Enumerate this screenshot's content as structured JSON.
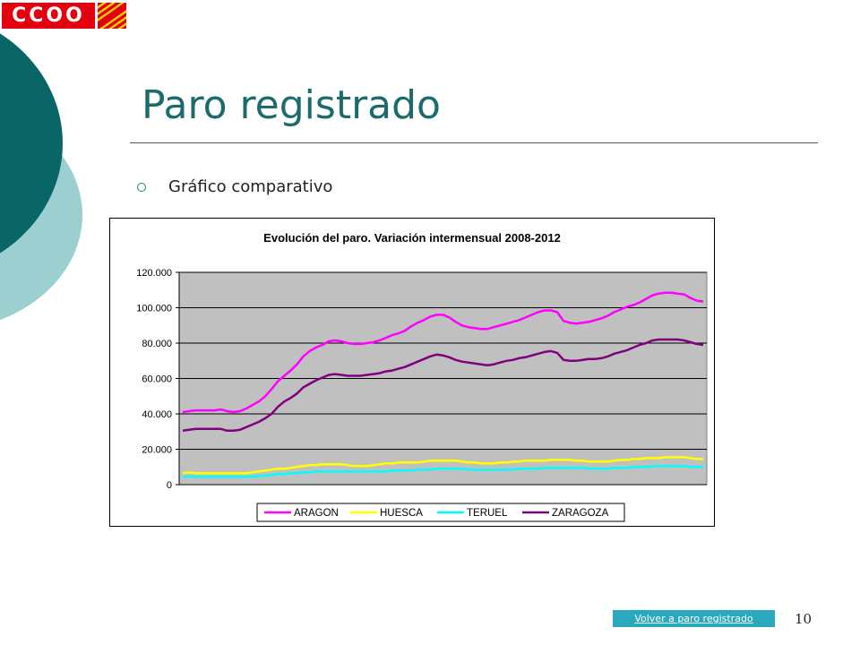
{
  "logo": {
    "text": "CCOO"
  },
  "slide": {
    "title": "Paro registrado",
    "bullet": "Gráfico comparativo",
    "page_number": "10"
  },
  "link": {
    "label": "Volver a paro registrado"
  },
  "colors": {
    "teal_dark": "#0a6666",
    "teal_light": "#9ccfcf",
    "title": "#1b6b6b",
    "link_bg": "#2aa9bd",
    "plot_bg": "#c0c0c0",
    "logo_red": "#e3000f"
  },
  "chart_data": {
    "type": "line",
    "title": "Evolución del paro. Variación intermensual 2008-2012",
    "xlabel": "",
    "ylabel": "",
    "ylim": [
      0,
      120000
    ],
    "yticks": [
      "0",
      "20.000",
      "40.000",
      "60.000",
      "80.000",
      "100.000",
      "120.000"
    ],
    "grid": true,
    "legend": "bottom",
    "series": [
      {
        "name": "ARAGON",
        "color": "#ff00ff",
        "values": [
          41000,
          41500,
          42000,
          42000,
          42000,
          42000,
          42500,
          41500,
          41000,
          41500,
          43000,
          45000,
          47000,
          50000,
          54000,
          58500,
          61500,
          64500,
          68000,
          72500,
          75500,
          77500,
          79000,
          81000,
          81500,
          81000,
          80000,
          79500,
          79500,
          80000,
          80500,
          81500,
          83000,
          84500,
          85500,
          87000,
          89500,
          91500,
          93000,
          95000,
          96000,
          96000,
          94500,
          92000,
          90000,
          89000,
          88500,
          88000,
          88000,
          89000,
          90000,
          91000,
          92000,
          93000,
          94500,
          96000,
          97500,
          98500,
          98500,
          97500,
          92500,
          91500,
          91000,
          91500,
          92000,
          93000,
          94000,
          95500,
          97500,
          99000,
          100500,
          101500,
          103000,
          105000,
          107000,
          108000,
          108500,
          108500,
          108000,
          107500,
          105500,
          104000,
          103500
        ]
      },
      {
        "name": "HUESCA",
        "color": "#ffff00",
        "values": [
          6500,
          7000,
          6500,
          6500,
          6500,
          6500,
          6500,
          6500,
          6500,
          6500,
          6500,
          7000,
          7500,
          8000,
          8500,
          9000,
          9000,
          9500,
          10000,
          10500,
          11000,
          11000,
          11500,
          11500,
          11500,
          11500,
          11000,
          10500,
          10500,
          10500,
          11000,
          11500,
          12000,
          12000,
          12500,
          12500,
          12500,
          12500,
          13000,
          13500,
          13500,
          13500,
          13500,
          13500,
          13000,
          12500,
          12500,
          12000,
          12000,
          12000,
          12500,
          12500,
          13000,
          13000,
          13500,
          13500,
          13500,
          13500,
          14000,
          14000,
          14000,
          14000,
          13500,
          13500,
          13000,
          13000,
          13000,
          13000,
          13500,
          14000,
          14000,
          14500,
          14500,
          15000,
          15000,
          15000,
          15500,
          15500,
          15500,
          15500,
          15000,
          14500,
          14500
        ]
      },
      {
        "name": "TERUEL",
        "color": "#00ffff",
        "values": [
          4500,
          4500,
          4500,
          4500,
          4500,
          4500,
          4500,
          4500,
          4500,
          4500,
          4500,
          4500,
          5000,
          5000,
          5500,
          6000,
          6000,
          6500,
          6500,
          7000,
          7000,
          7500,
          7500,
          7500,
          7500,
          7500,
          7500,
          7500,
          7500,
          7500,
          7500,
          7500,
          7500,
          8000,
          8000,
          8000,
          8000,
          8500,
          8500,
          8500,
          9000,
          9000,
          9000,
          9000,
          9000,
          8500,
          8500,
          8500,
          8500,
          8500,
          8500,
          8500,
          8500,
          9000,
          9000,
          9000,
          9000,
          9500,
          9500,
          9500,
          9500,
          9500,
          9500,
          9500,
          9000,
          9000,
          9000,
          9000,
          9500,
          9500,
          9500,
          10000,
          10000,
          10000,
          10500,
          10500,
          10500,
          10500,
          10500,
          10500,
          10000,
          10000,
          10000
        ]
      },
      {
        "name": "ZARAGOZA",
        "color": "#800080",
        "values": [
          30500,
          31000,
          31500,
          31500,
          31500,
          31500,
          31500,
          30500,
          30500,
          31000,
          32500,
          34000,
          35500,
          37500,
          40000,
          44000,
          47000,
          49000,
          51500,
          55000,
          57000,
          59000,
          60500,
          62000,
          62500,
          62000,
          61500,
          61500,
          61500,
          62000,
          62500,
          63000,
          64000,
          64500,
          65500,
          66500,
          68000,
          69500,
          71000,
          72500,
          73500,
          73000,
          72000,
          70500,
          69500,
          69000,
          68500,
          68000,
          67500,
          68000,
          69000,
          70000,
          70500,
          71500,
          72000,
          73000,
          74000,
          75000,
          75500,
          74500,
          70500,
          70000,
          70000,
          70500,
          71000,
          71000,
          71500,
          72500,
          74000,
          75000,
          76000,
          77500,
          79000,
          80000,
          81500,
          82000,
          82000,
          82000,
          82000,
          81500,
          80500,
          79500,
          79000
        ]
      }
    ]
  }
}
